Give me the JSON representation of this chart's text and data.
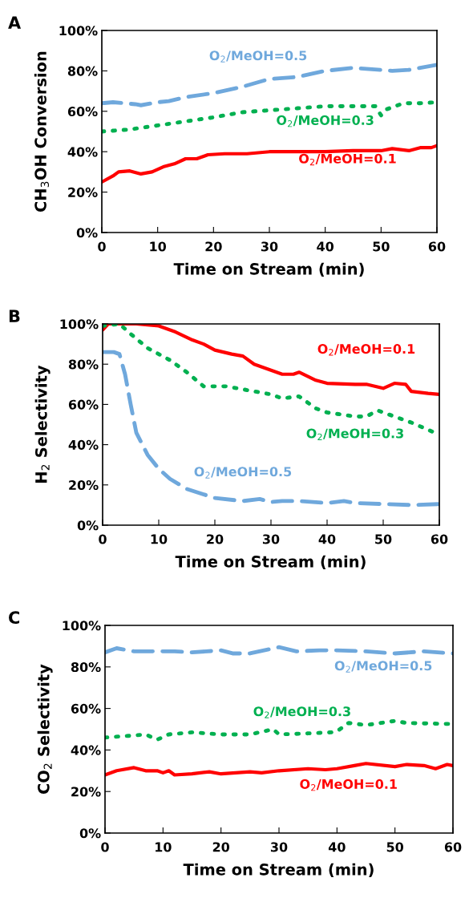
{
  "chart_data": [
    {
      "type": "line",
      "title": "A",
      "xlabel": "Time on Stream (min)",
      "ylabel": "CH$_{3}$OH Conversion",
      "xlim": [
        0,
        60
      ],
      "xticks": [
        0,
        10,
        20,
        30,
        40,
        50,
        60
      ],
      "ylim": [
        0,
        100
      ],
      "yticks": [
        {
          "value": 0,
          "label": "0%"
        },
        {
          "value": 20,
          "label": "20%"
        },
        {
          "value": 40,
          "label": "40%"
        },
        {
          "value": 60,
          "label": "60%"
        },
        {
          "value": 80,
          "label": "80%"
        },
        {
          "value": 100,
          "label": "100%"
        }
      ],
      "grid": false,
      "legend": false,
      "series": [
        {
          "name": "O$_{2}$/MeOH=0.1",
          "color": "#ff0000",
          "line_style": "solid",
          "x": [
            0,
            2,
            3,
            5,
            7,
            9,
            11,
            13,
            15,
            17,
            19,
            22,
            26,
            30,
            35,
            40,
            45,
            50,
            52,
            55,
            57,
            59,
            60
          ],
          "values": [
            25,
            28,
            30,
            30.5,
            29,
            30,
            32.5,
            34,
            36.5,
            36.5,
            38.5,
            39,
            39,
            40,
            40,
            40,
            40.5,
            40.5,
            41.5,
            40.5,
            42,
            42,
            43
          ]
        },
        {
          "name": "O$_{2}$/MeOH=0.3",
          "color": "#00b050",
          "line_style": "dotted",
          "x": [
            0,
            5,
            10,
            15,
            20,
            25,
            30,
            35,
            40,
            45,
            49,
            50,
            51,
            54,
            57,
            60
          ],
          "values": [
            50,
            51,
            53,
            55,
            57,
            59.5,
            60.5,
            61.5,
            62.5,
            62.5,
            62.5,
            58,
            61,
            64,
            64,
            64.5
          ]
        },
        {
          "name": "O$_{2}$/MeOH=0.5",
          "color": "#6fa8dc",
          "line_style": "dashed",
          "x": [
            0,
            2,
            6,
            7,
            10,
            12,
            15,
            20,
            25,
            30,
            35,
            40,
            45,
            50,
            52,
            55,
            60
          ],
          "values": [
            64,
            64.5,
            63.5,
            63,
            64.5,
            65,
            67,
            69,
            72,
            76,
            77,
            80,
            81.5,
            80.5,
            80,
            80.5,
            83
          ]
        }
      ]
    },
    {
      "type": "line",
      "title": "B",
      "xlabel": "Time on Stream (min)",
      "ylabel": "H$_{2}$ Selectivity",
      "xlim": [
        0,
        60
      ],
      "xticks": [
        0,
        10,
        20,
        30,
        40,
        50,
        60
      ],
      "ylim": [
        0,
        100
      ],
      "yticks": [
        {
          "value": 0,
          "label": "0%"
        },
        {
          "value": 20,
          "label": "20%"
        },
        {
          "value": 40,
          "label": "40%"
        },
        {
          "value": 60,
          "label": "60%"
        },
        {
          "value": 80,
          "label": "80%"
        },
        {
          "value": 100,
          "label": "100%"
        }
      ],
      "grid": false,
      "legend": false,
      "series": [
        {
          "name": "O$_{2}$/MeOH=0.1",
          "color": "#ff0000",
          "line_style": "solid",
          "x": [
            0,
            1,
            3,
            6,
            10,
            13,
            16,
            18,
            20,
            23,
            25,
            27,
            30,
            32,
            34,
            35,
            38,
            40,
            45,
            47,
            50,
            52,
            54,
            55,
            58,
            60
          ],
          "values": [
            97,
            100,
            100,
            100,
            99,
            96,
            92,
            90,
            87,
            85,
            84,
            80,
            77,
            75,
            75,
            76,
            72,
            70.5,
            70,
            70,
            68,
            70.5,
            70,
            66.5,
            65.5,
            65
          ]
        },
        {
          "name": "O$_{2}$/MeOH=0.3",
          "color": "#00b050",
          "line_style": "dotted",
          "x": [
            0,
            3,
            5,
            8,
            12,
            15,
            18,
            22,
            25,
            30,
            32,
            35,
            38,
            40,
            45,
            47,
            49,
            52,
            55,
            60
          ],
          "values": [
            99,
            100,
            95,
            88,
            82,
            76,
            69,
            69,
            67.5,
            65,
            63,
            64,
            58,
            56,
            54,
            54,
            57,
            54,
            51,
            45
          ]
        },
        {
          "name": "O$_{2}$/MeOH=0.5",
          "color": "#6fa8dc",
          "line_style": "dashed",
          "x": [
            0,
            2,
            3,
            4,
            5,
            6,
            8,
            10,
            12,
            15,
            20,
            25,
            28,
            30,
            32,
            35,
            40,
            43,
            45,
            50,
            55,
            60
          ],
          "values": [
            86,
            86,
            85,
            75,
            60,
            46,
            35,
            28,
            23,
            18,
            13.5,
            12,
            13,
            11.5,
            12,
            12,
            11,
            12,
            11,
            10.5,
            10,
            10.5
          ]
        }
      ]
    },
    {
      "type": "line",
      "title": "C",
      "xlabel": "Time on Stream (min)",
      "ylabel": "CO$_{2}$ Selectivity",
      "xlim": [
        0,
        60
      ],
      "xticks": [
        0,
        10,
        20,
        30,
        40,
        50,
        60
      ],
      "ylim": [
        0,
        100
      ],
      "yticks": [
        {
          "value": 0,
          "label": "0%"
        },
        {
          "value": 20,
          "label": "20%"
        },
        {
          "value": 40,
          "label": "40%"
        },
        {
          "value": 60,
          "label": "60%"
        },
        {
          "value": 80,
          "label": "80%"
        },
        {
          "value": 100,
          "label": "100%"
        }
      ],
      "grid": false,
      "legend": false,
      "series": [
        {
          "name": "O$_{2}$/MeOH=0.1",
          "color": "#ff0000",
          "line_style": "solid",
          "x": [
            0,
            2,
            5,
            7,
            9,
            10,
            11,
            12,
            15,
            18,
            20,
            25,
            27,
            30,
            35,
            38,
            40,
            43,
            45,
            50,
            52,
            55,
            57,
            59,
            60
          ],
          "values": [
            28,
            30,
            31.5,
            30,
            30,
            29,
            30,
            28,
            28.5,
            29.5,
            28.5,
            29.5,
            29,
            30,
            31,
            30.5,
            31,
            32.5,
            33.5,
            32,
            33,
            32.5,
            31,
            33,
            32.5
          ]
        },
        {
          "name": "O$_{2}$/MeOH=0.3",
          "color": "#00b050",
          "line_style": "dotted",
          "x": [
            0,
            5,
            7,
            9,
            11,
            15,
            20,
            25,
            29,
            30,
            35,
            39,
            40,
            42,
            45,
            50,
            52,
            60
          ],
          "values": [
            46,
            47,
            47.5,
            45,
            47.5,
            48.5,
            47.5,
            47.5,
            50,
            47.5,
            48,
            48.5,
            49,
            53,
            52,
            54,
            53,
            52.5
          ]
        },
        {
          "name": "O$_{2}$/MeOH=0.5",
          "color": "#6fa8dc",
          "line_style": "dashed",
          "x": [
            0,
            2,
            5,
            10,
            12,
            15,
            20,
            22,
            25,
            30,
            33,
            37,
            40,
            45,
            50,
            55,
            60
          ],
          "values": [
            87,
            89,
            87.5,
            87.5,
            87.5,
            87,
            88,
            86.5,
            86.5,
            89.5,
            87.5,
            88,
            88,
            87.5,
            86.5,
            87.5,
            86.5
          ]
        }
      ]
    }
  ]
}
